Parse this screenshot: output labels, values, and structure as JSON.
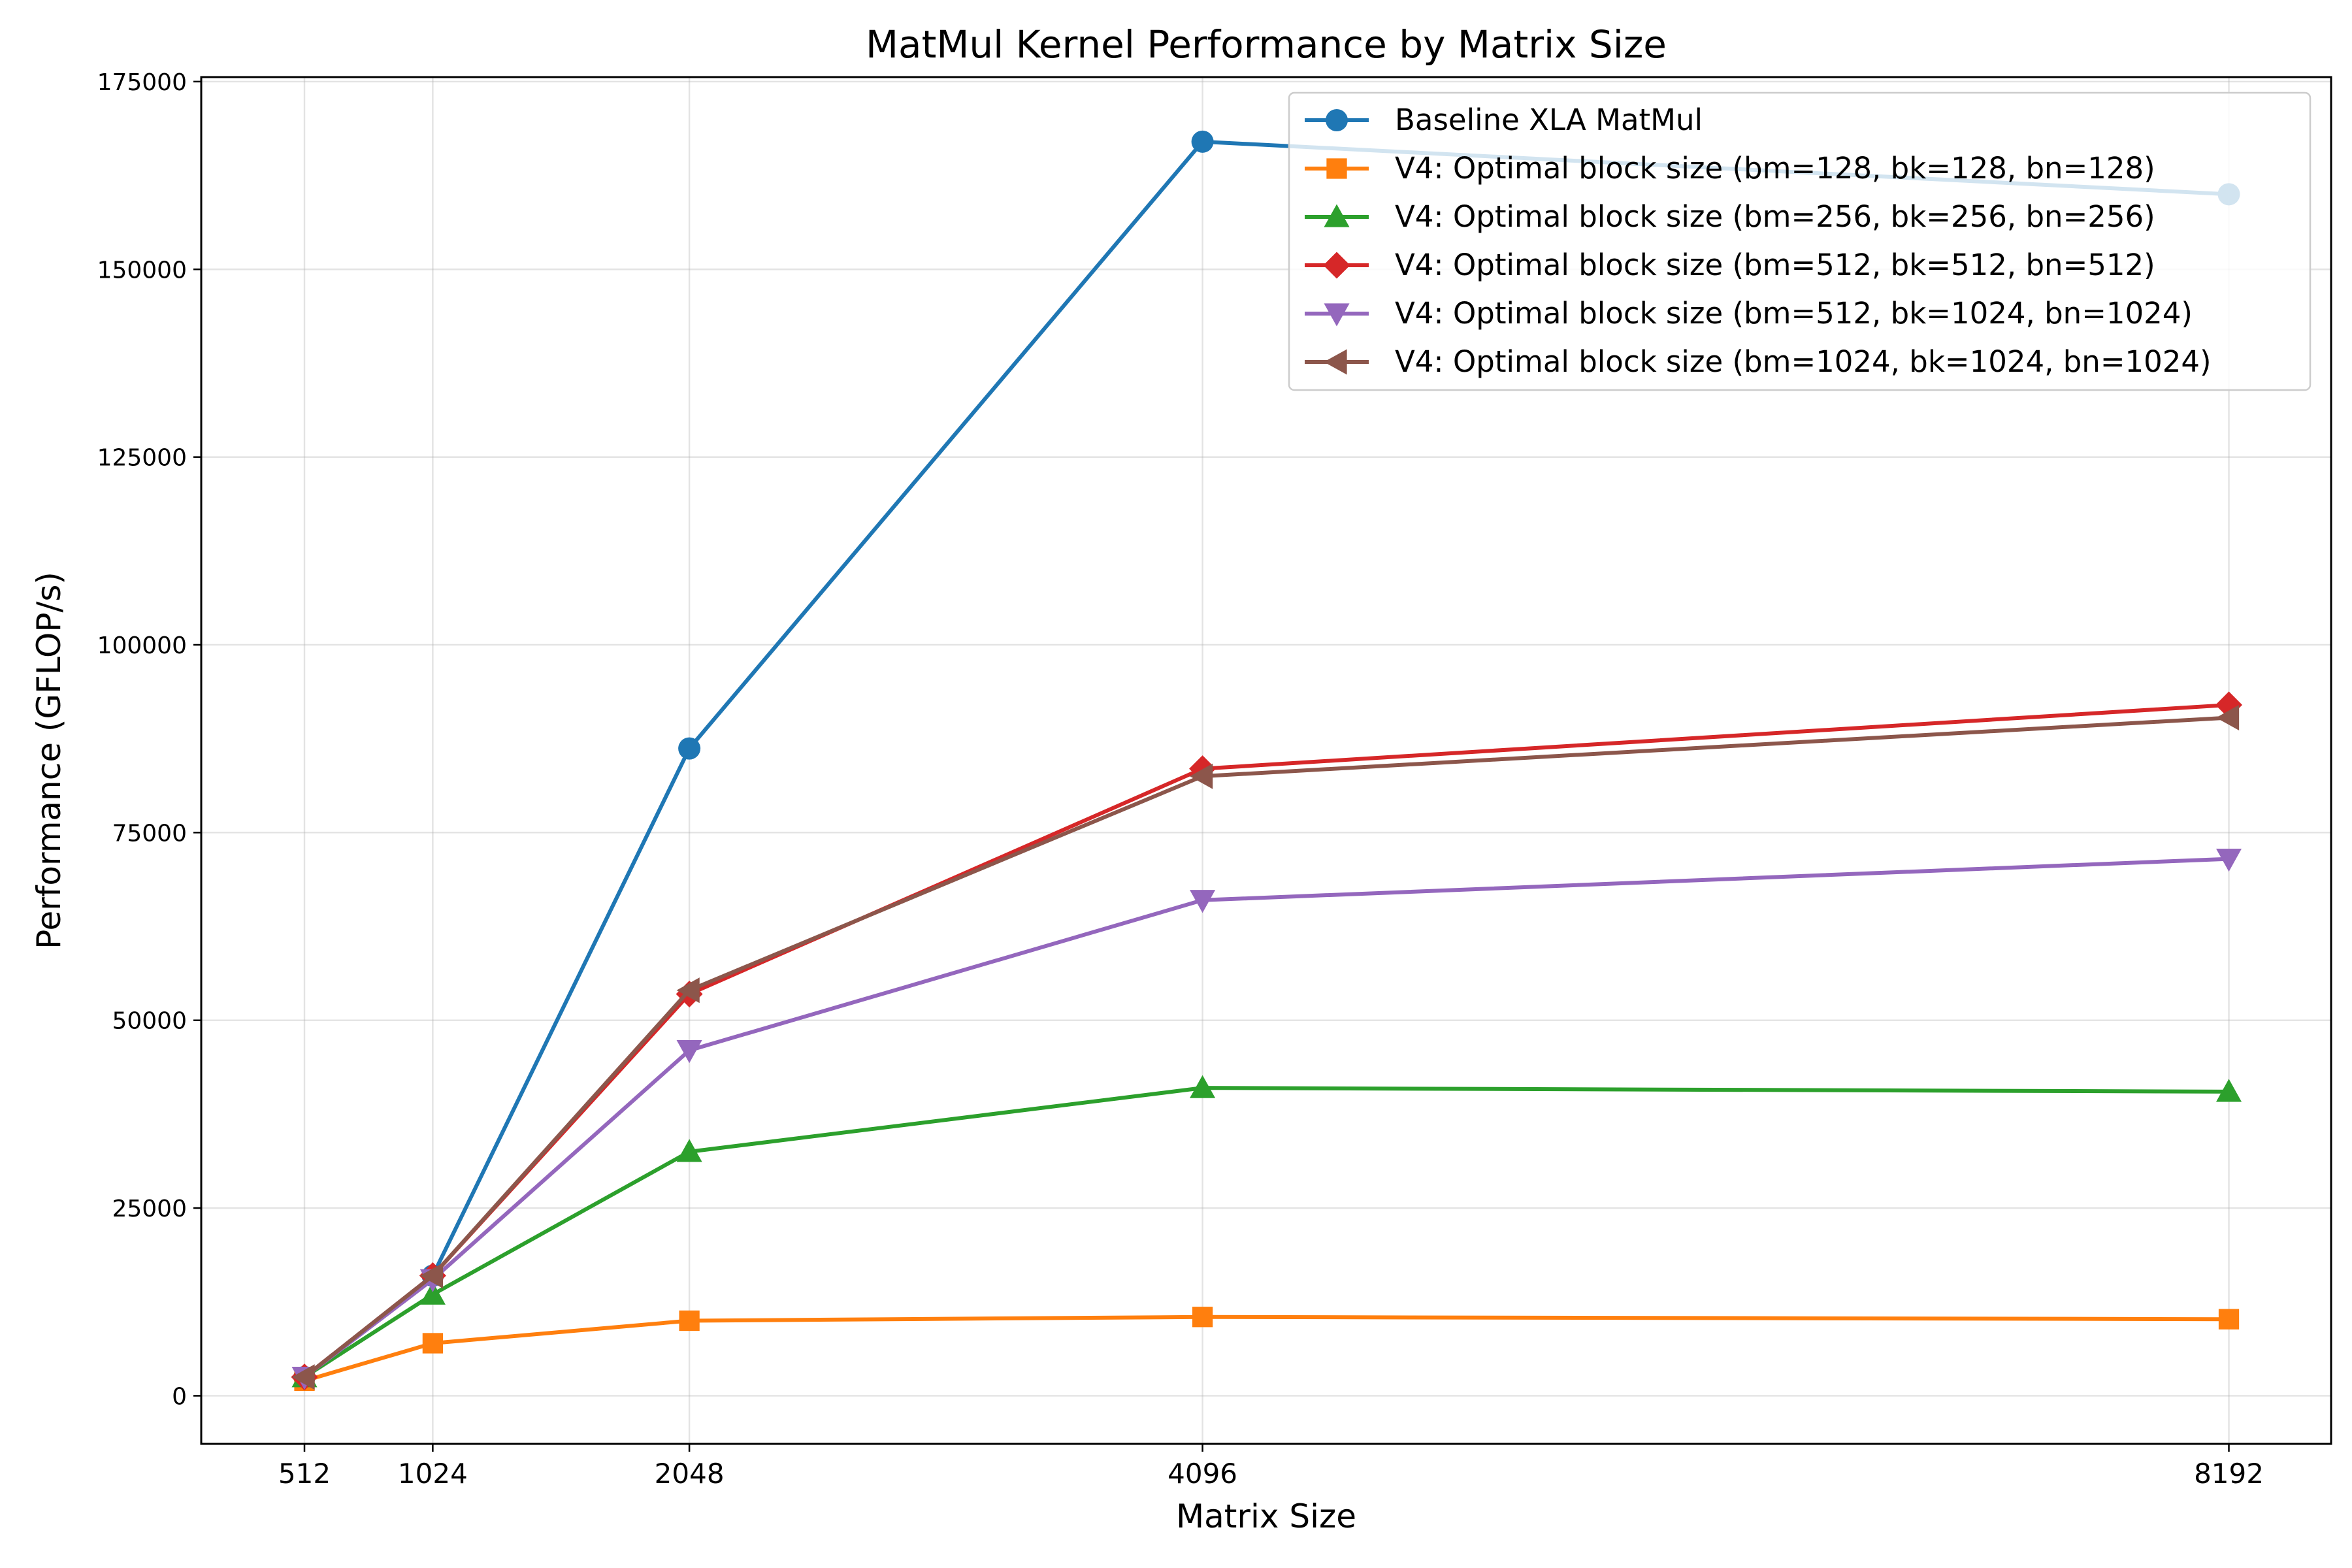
{
  "chart_data": {
    "type": "line",
    "title": "MatMul Kernel Performance by Matrix Size",
    "xlabel": "Matrix Size",
    "ylabel": "Performance (GFLOP/s)",
    "x": [
      512,
      1024,
      2048,
      4096,
      8192
    ],
    "x_tick_labels": [
      "512",
      "1024",
      "2048",
      "4096",
      "8192"
    ],
    "y_ticks": [
      0,
      25000,
      50000,
      75000,
      100000,
      125000,
      150000,
      175000
    ],
    "y_tick_labels": [
      "0",
      "25000",
      "50000",
      "75000",
      "100000",
      "125000",
      "150000",
      "175000"
    ],
    "xlim": [
      100,
      8600
    ],
    "ylim": [
      -6400,
      175600
    ],
    "grid": true,
    "legend_position": "top-right",
    "series": [
      {
        "name": "Baseline XLA MatMul",
        "values": [
          2500,
          16000,
          86200,
          167000,
          160000
        ],
        "color": "#1f77b4",
        "marker": "circle"
      },
      {
        "name": "V4: Optimal block size (bm=128, bk=128, bn=128)",
        "values": [
          2000,
          7000,
          10000,
          10500,
          10200
        ],
        "color": "#ff7f0e",
        "marker": "square"
      },
      {
        "name": "V4: Optimal block size (bm=256, bk=256, bn=256)",
        "values": [
          2500,
          13500,
          32500,
          41000,
          40500
        ],
        "color": "#2ca02c",
        "marker": "triangle-up"
      },
      {
        "name": "V4: Optimal block size (bm=512, bk=512, bn=512)",
        "values": [
          2500,
          16000,
          53500,
          83500,
          92000
        ],
        "color": "#d62728",
        "marker": "diamond"
      },
      {
        "name": "V4: Optimal block size (bm=512, bk=1024, bn=1024)",
        "values": [
          2500,
          15500,
          46000,
          66000,
          71500
        ],
        "color": "#9467bd",
        "marker": "triangle-down"
      },
      {
        "name": "V4: Optimal block size (bm=1024, bk=1024, bn=1024)",
        "values": [
          2500,
          16000,
          54000,
          82500,
          90300
        ],
        "color": "#8c564b",
        "marker": "triangle-left"
      }
    ]
  }
}
